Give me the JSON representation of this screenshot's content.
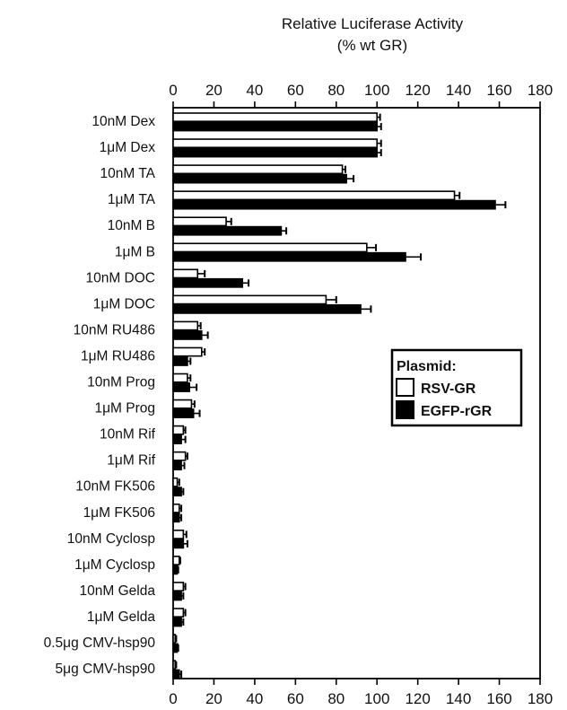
{
  "chart_data": {
    "type": "bar",
    "orientation": "horizontal",
    "title": "Relative Luciferase Activity",
    "subtitle": "(% wt GR)",
    "xlim": [
      0,
      180
    ],
    "xticks": [
      "0",
      "20",
      "40",
      "60",
      "80",
      "100",
      "120",
      "140",
      "160",
      "180"
    ],
    "categories": [
      "10nM Dex",
      "1μM Dex",
      "10nM TA",
      "1μM TA",
      "10nM B",
      "1μM B",
      "10nM DOC",
      "1μM DOC",
      "10nM RU486",
      "1μM RU486",
      "10nM Prog",
      "1μM Prog",
      "10nM Rif",
      "1μM Rif",
      "10nM FK506",
      "1μM FK506",
      "10nM Cyclosp",
      "1μM Cyclosp",
      "10nM Gelda",
      "1μM Gelda",
      "0.5μg CMV-hsp90",
      "5μg CMV-hsp90"
    ],
    "series": [
      {
        "name": "RSV-GR",
        "fill": "#ffffff",
        "values": [
          100,
          100,
          83,
          138,
          26,
          95,
          12,
          75,
          12,
          14,
          7,
          9,
          5,
          6,
          2,
          3,
          5,
          3,
          5,
          5,
          1,
          1
        ],
        "errors": [
          1.5,
          2,
          1.5,
          2.5,
          2.5,
          4.5,
          3.5,
          5,
          1.5,
          1.5,
          1.5,
          1.5,
          1,
          1,
          1,
          1,
          1.5,
          0.5,
          1,
          1,
          0.5,
          0.5
        ]
      },
      {
        "name": "EGFP-rGR",
        "fill": "#000000",
        "values": [
          100,
          100,
          85,
          158,
          53,
          114,
          34,
          92,
          14,
          7,
          8,
          10,
          4,
          4,
          4,
          3,
          5,
          2,
          4,
          4,
          2,
          3
        ],
        "errors": [
          2,
          2,
          3.5,
          5,
          2.5,
          7.5,
          3,
          5,
          3,
          1.5,
          3.5,
          3,
          2,
          1.5,
          1,
          1,
          2,
          0.5,
          1,
          1,
          0.5,
          1
        ]
      }
    ],
    "legend": {
      "title": "Plasmid:",
      "position": "right-middle"
    },
    "grid": false
  }
}
